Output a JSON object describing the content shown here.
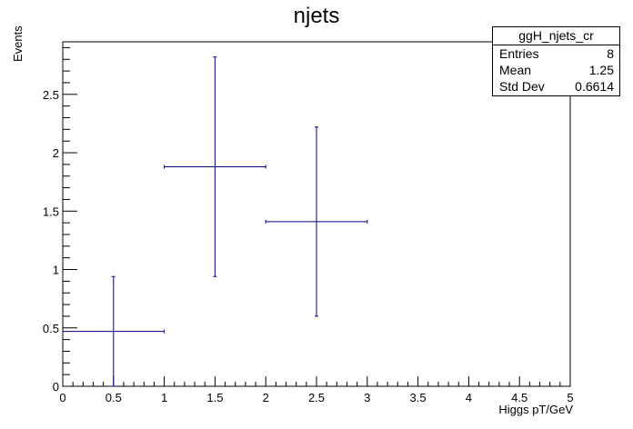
{
  "chart_data": {
    "type": "scatter",
    "title": "njets",
    "xlabel": "Higgs pT/GeV",
    "ylabel": "Events",
    "xlim": [
      0,
      5
    ],
    "ylim": [
      0,
      2.95
    ],
    "x_ticks": [
      "0",
      "0.5",
      "1",
      "1.5",
      "2",
      "2.5",
      "3",
      "3.5",
      "4",
      "4.5",
      "5"
    ],
    "y_ticks": [
      "0",
      "0.5",
      "1",
      "1.5",
      "2",
      "2.5"
    ],
    "grid": false,
    "series": [
      {
        "color": "#000080",
        "points": [
          {
            "x": 0.5,
            "y": 0.47,
            "x_err": 0.5,
            "y_err": 0.47
          },
          {
            "x": 1.5,
            "y": 1.88,
            "x_err": 0.5,
            "y_err": 0.94
          },
          {
            "x": 2.5,
            "y": 1.41,
            "x_err": 0.5,
            "y_err": 0.81
          }
        ]
      }
    ],
    "stats_box": {
      "name": "ggH_njets_cr",
      "rows": [
        {
          "label": "Entries",
          "value": "8"
        },
        {
          "label": "Mean",
          "value": "1.25"
        },
        {
          "label": "Std Dev",
          "value": "0.6614"
        }
      ]
    }
  }
}
